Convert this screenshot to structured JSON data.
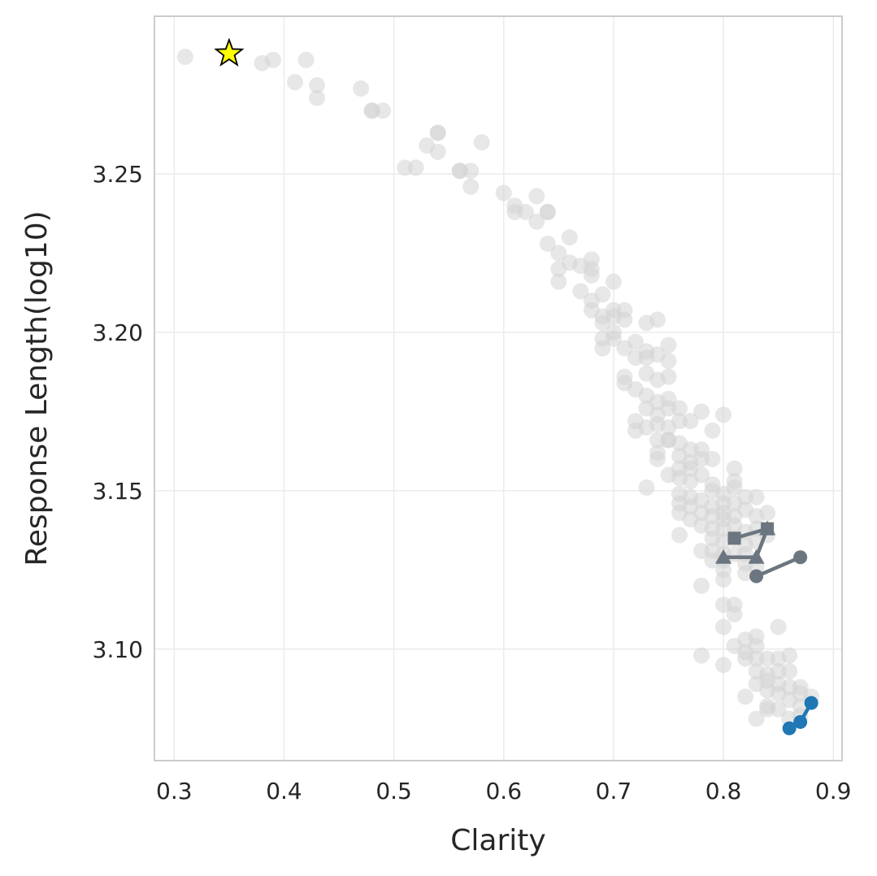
{
  "chart_data": {
    "type": "scatter",
    "title": "",
    "xlabel": "Clarity",
    "ylabel": "Response Length(log10)",
    "xlim": [
      0.282,
      0.908
    ],
    "ylim": [
      3.0648,
      3.2998
    ],
    "x_ticks": [
      0.3,
      0.4,
      0.5,
      0.6,
      0.7,
      0.8,
      0.9
    ],
    "x_tick_labels": [
      "0.3",
      "0.4",
      "0.5",
      "0.6",
      "0.7",
      "0.8",
      "0.9"
    ],
    "y_ticks": [
      3.1,
      3.15,
      3.2,
      3.25
    ],
    "y_tick_labels": [
      "3.10",
      "3.15",
      "3.20",
      "3.25"
    ],
    "grid": true,
    "legend": "none",
    "colors": {
      "background_points": "#d3d3d3",
      "highlight_series": "#6b7680",
      "blue_series": "#1f77b4",
      "star": "#ffff00",
      "axis_frame": "#cccccc",
      "grid": "#ebebeb"
    },
    "background_points": [
      [
        0.31,
        3.287
      ],
      [
        0.38,
        3.285
      ],
      [
        0.39,
        3.286
      ],
      [
        0.42,
        3.286
      ],
      [
        0.41,
        3.279
      ],
      [
        0.43,
        3.278
      ],
      [
        0.43,
        3.274
      ],
      [
        0.47,
        3.277
      ],
      [
        0.48,
        3.27
      ],
      [
        0.48,
        3.27
      ],
      [
        0.49,
        3.27
      ],
      [
        0.54,
        3.263
      ],
      [
        0.54,
        3.263
      ],
      [
        0.53,
        3.259
      ],
      [
        0.54,
        3.257
      ],
      [
        0.58,
        3.26
      ],
      [
        0.51,
        3.252
      ],
      [
        0.52,
        3.252
      ],
      [
        0.56,
        3.251
      ],
      [
        0.56,
        3.251
      ],
      [
        0.57,
        3.251
      ],
      [
        0.57,
        3.246
      ],
      [
        0.6,
        3.244
      ],
      [
        0.61,
        3.24
      ],
      [
        0.61,
        3.238
      ],
      [
        0.62,
        3.238
      ],
      [
        0.63,
        3.243
      ],
      [
        0.63,
        3.235
      ],
      [
        0.64,
        3.238
      ],
      [
        0.64,
        3.238
      ],
      [
        0.64,
        3.228
      ],
      [
        0.65,
        3.225
      ],
      [
        0.65,
        3.22
      ],
      [
        0.65,
        3.216
      ],
      [
        0.66,
        3.23
      ],
      [
        0.66,
        3.222
      ],
      [
        0.67,
        3.221
      ],
      [
        0.68,
        3.223
      ],
      [
        0.68,
        3.22
      ],
      [
        0.68,
        3.218
      ],
      [
        0.67,
        3.213
      ],
      [
        0.68,
        3.21
      ],
      [
        0.69,
        3.212
      ],
      [
        0.7,
        3.216
      ],
      [
        0.68,
        3.207
      ],
      [
        0.69,
        3.205
      ],
      [
        0.69,
        3.203
      ],
      [
        0.7,
        3.207
      ],
      [
        0.7,
        3.205
      ],
      [
        0.71,
        3.207
      ],
      [
        0.71,
        3.204
      ],
      [
        0.69,
        3.198
      ],
      [
        0.69,
        3.195
      ],
      [
        0.7,
        3.2
      ],
      [
        0.7,
        3.198
      ],
      [
        0.71,
        3.195
      ],
      [
        0.72,
        3.197
      ],
      [
        0.73,
        3.203
      ],
      [
        0.74,
        3.204
      ],
      [
        0.72,
        3.192
      ],
      [
        0.73,
        3.194
      ],
      [
        0.73,
        3.192
      ],
      [
        0.74,
        3.193
      ],
      [
        0.75,
        3.196
      ],
      [
        0.75,
        3.191
      ],
      [
        0.71,
        3.186
      ],
      [
        0.71,
        3.184
      ],
      [
        0.72,
        3.182
      ],
      [
        0.73,
        3.187
      ],
      [
        0.73,
        3.18
      ],
      [
        0.74,
        3.185
      ],
      [
        0.75,
        3.186
      ],
      [
        0.73,
        3.176
      ],
      [
        0.74,
        3.178
      ],
      [
        0.74,
        3.174
      ],
      [
        0.75,
        3.179
      ],
      [
        0.75,
        3.176
      ],
      [
        0.76,
        3.176
      ],
      [
        0.76,
        3.172
      ],
      [
        0.72,
        3.172
      ],
      [
        0.72,
        3.169
      ],
      [
        0.73,
        3.17
      ],
      [
        0.74,
        3.171
      ],
      [
        0.75,
        3.17
      ],
      [
        0.75,
        3.166
      ],
      [
        0.77,
        3.172
      ],
      [
        0.78,
        3.175
      ],
      [
        0.79,
        3.169
      ],
      [
        0.8,
        3.174
      ],
      [
        0.74,
        3.166
      ],
      [
        0.74,
        3.162
      ],
      [
        0.75,
        3.166
      ],
      [
        0.76,
        3.165
      ],
      [
        0.76,
        3.161
      ],
      [
        0.77,
        3.163
      ],
      [
        0.77,
        3.159
      ],
      [
        0.78,
        3.163
      ],
      [
        0.78,
        3.16
      ],
      [
        0.79,
        3.16
      ],
      [
        0.74,
        3.16
      ],
      [
        0.75,
        3.155
      ],
      [
        0.76,
        3.157
      ],
      [
        0.76,
        3.154
      ],
      [
        0.77,
        3.157
      ],
      [
        0.77,
        3.153
      ],
      [
        0.78,
        3.155
      ],
      [
        0.79,
        3.152
      ],
      [
        0.79,
        3.15
      ],
      [
        0.8,
        3.149
      ],
      [
        0.8,
        3.146
      ],
      [
        0.81,
        3.157
      ],
      [
        0.81,
        3.153
      ],
      [
        0.81,
        3.151
      ],
      [
        0.73,
        3.151
      ],
      [
        0.76,
        3.149
      ],
      [
        0.76,
        3.146
      ],
      [
        0.77,
        3.148
      ],
      [
        0.77,
        3.145
      ],
      [
        0.78,
        3.147
      ],
      [
        0.78,
        3.143
      ],
      [
        0.79,
        3.145
      ],
      [
        0.79,
        3.142
      ],
      [
        0.8,
        3.143
      ],
      [
        0.8,
        3.141
      ],
      [
        0.81,
        3.146
      ],
      [
        0.81,
        3.142
      ],
      [
        0.82,
        3.148
      ],
      [
        0.82,
        3.144
      ],
      [
        0.83,
        3.148
      ],
      [
        0.83,
        3.142
      ],
      [
        0.84,
        3.143
      ],
      [
        0.76,
        3.143
      ],
      [
        0.77,
        3.141
      ],
      [
        0.78,
        3.139
      ],
      [
        0.79,
        3.138
      ],
      [
        0.79,
        3.135
      ],
      [
        0.8,
        3.138
      ],
      [
        0.8,
        3.134
      ],
      [
        0.81,
        3.139
      ],
      [
        0.81,
        3.135
      ],
      [
        0.82,
        3.137
      ],
      [
        0.82,
        3.133
      ],
      [
        0.83,
        3.138
      ],
      [
        0.83,
        3.134
      ],
      [
        0.84,
        3.136
      ],
      [
        0.76,
        3.136
      ],
      [
        0.79,
        3.131
      ],
      [
        0.79,
        3.128
      ],
      [
        0.8,
        3.13
      ],
      [
        0.8,
        3.128
      ],
      [
        0.81,
        3.13
      ],
      [
        0.82,
        3.13
      ],
      [
        0.82,
        3.127
      ],
      [
        0.78,
        3.131
      ],
      [
        0.8,
        3.125
      ],
      [
        0.8,
        3.122
      ],
      [
        0.82,
        3.124
      ],
      [
        0.83,
        3.126
      ],
      [
        0.78,
        3.12
      ],
      [
        0.81,
        3.114
      ],
      [
        0.81,
        3.111
      ],
      [
        0.8,
        3.114
      ],
      [
        0.8,
        3.107
      ],
      [
        0.81,
        3.101
      ],
      [
        0.82,
        3.103
      ],
      [
        0.82,
        3.099
      ],
      [
        0.83,
        3.104
      ],
      [
        0.83,
        3.101
      ],
      [
        0.83,
        3.097
      ],
      [
        0.84,
        3.097
      ],
      [
        0.85,
        3.107
      ],
      [
        0.8,
        3.095
      ],
      [
        0.78,
        3.098
      ],
      [
        0.82,
        3.097
      ],
      [
        0.83,
        3.093
      ],
      [
        0.84,
        3.092
      ],
      [
        0.84,
        3.09
      ],
      [
        0.85,
        3.097
      ],
      [
        0.85,
        3.093
      ],
      [
        0.86,
        3.098
      ],
      [
        0.86,
        3.093
      ],
      [
        0.83,
        3.089
      ],
      [
        0.84,
        3.087
      ],
      [
        0.85,
        3.089
      ],
      [
        0.85,
        3.086
      ],
      [
        0.86,
        3.088
      ],
      [
        0.86,
        3.084
      ],
      [
        0.87,
        3.088
      ],
      [
        0.87,
        3.086
      ],
      [
        0.82,
        3.085
      ],
      [
        0.83,
        3.078
      ],
      [
        0.84,
        3.082
      ],
      [
        0.84,
        3.081
      ],
      [
        0.85,
        3.081
      ],
      [
        0.86,
        3.078
      ],
      [
        0.87,
        3.082
      ],
      [
        0.88,
        3.085
      ],
      [
        0.87,
        3.079
      ]
    ],
    "series": [
      {
        "marker": "square",
        "color": "#6b7680",
        "points": [
          [
            0.81,
            3.135
          ],
          [
            0.84,
            3.138
          ]
        ]
      },
      {
        "marker": "triangle",
        "color": "#6b7680",
        "points": [
          [
            0.8,
            3.129
          ],
          [
            0.83,
            3.129
          ],
          [
            0.84,
            3.138
          ]
        ]
      },
      {
        "marker": "circle",
        "color": "#6b7680",
        "points": [
          [
            0.83,
            3.123
          ],
          [
            0.87,
            3.129
          ]
        ]
      },
      {
        "marker": "circle",
        "color": "#1f77b4",
        "points": [
          [
            0.86,
            3.075
          ],
          [
            0.87,
            3.077
          ],
          [
            0.88,
            3.083
          ]
        ]
      }
    ],
    "star_point": [
      0.35,
      3.288
    ]
  }
}
